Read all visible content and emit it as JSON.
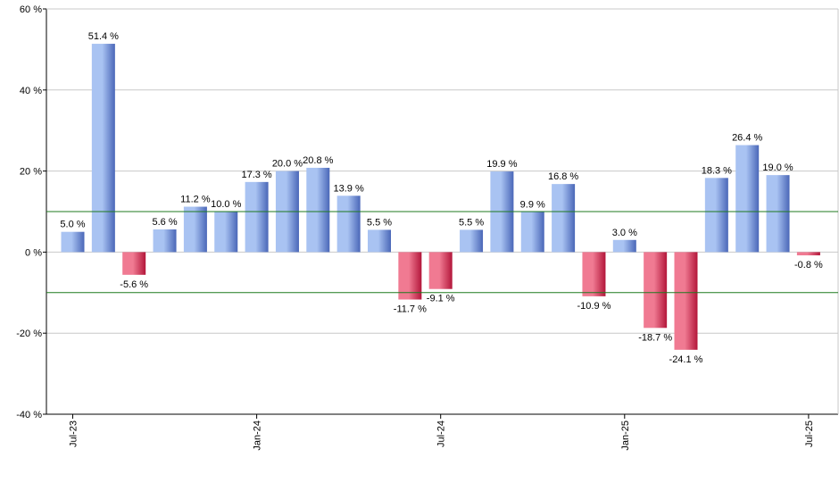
{
  "chart_data": {
    "type": "bar",
    "ylim": [
      -40,
      60
    ],
    "y_ticks": [
      60,
      40,
      20,
      0,
      -20,
      -40
    ],
    "y_tick_suffix": " %",
    "grid": true,
    "reference_lines": [
      10,
      -10
    ],
    "x_tick_labels": [
      "Jul-23",
      "Jan-24",
      "Jul-24",
      "Jan-25",
      "Jul-25"
    ],
    "x_tick_positions": [
      0,
      6,
      12,
      18,
      24
    ],
    "values": [
      5.0,
      51.4,
      -5.6,
      5.6,
      11.2,
      10.0,
      17.3,
      20.0,
      20.8,
      13.9,
      5.5,
      -11.7,
      -9.1,
      5.5,
      19.9,
      9.9,
      16.8,
      -10.9,
      3.0,
      -18.7,
      -24.1,
      18.3,
      26.4,
      19.0,
      -0.8
    ],
    "data_labels": [
      "5.0 %",
      "51.4 %",
      "-5.6 %",
      "5.6 %",
      "11.2 %",
      "10.0 %",
      "17.3 %",
      "20.0 %",
      "20.8 %",
      "13.9 %",
      "5.5 %",
      "-11.7 %",
      "-9.1 %",
      "5.5 %",
      "19.9 %",
      "9.9 %",
      "16.8 %",
      "-10.9 %",
      "3.0 %",
      "-18.7 %",
      "-24.1 %",
      "18.3 %",
      "26.4 %",
      "19.0 %",
      "-0.8 %"
    ],
    "colors": {
      "positive_dark": "#4a67b8",
      "positive_light": "#a9c3f2",
      "negative_dark": "#b3163a",
      "negative_light": "#f07a92",
      "grid": "#c8c8c8",
      "reference": "#1f7a1f",
      "axis": "#000000"
    }
  }
}
